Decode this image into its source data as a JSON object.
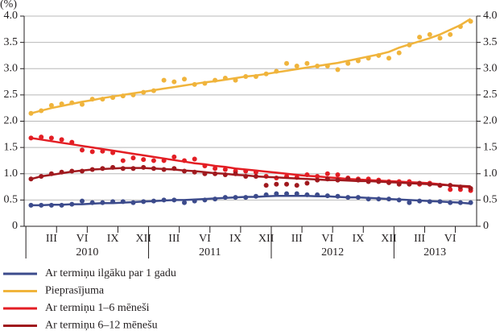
{
  "chart_data": {
    "type": "line",
    "unit": "(%)",
    "categories": [
      null,
      null,
      "III",
      null,
      null,
      "VI",
      null,
      null,
      "IX",
      null,
      null,
      "XII",
      null,
      null,
      "III",
      null,
      null,
      "VI",
      null,
      null,
      "IX",
      null,
      null,
      "XII",
      null,
      null,
      "III",
      null,
      null,
      "VI",
      null,
      null,
      "IX",
      null,
      null,
      "XII",
      null,
      null,
      "III",
      null,
      null,
      "VI",
      null,
      null
    ],
    "years": [
      "2010",
      "2011",
      "2012",
      "2013"
    ],
    "ylim": [
      0,
      4
    ],
    "yticks": [
      0,
      0.5,
      {
        "value": 1,
        "label": "1.0"
      },
      1.5,
      {
        "value": 2,
        "label": "2.0"
      },
      2.5,
      {
        "value": 3,
        "label": "3.0"
      },
      3.5,
      {
        "value": 4,
        "label": "4.0"
      }
    ],
    "grid": true,
    "series": [
      {
        "name": "Ar termiņu ilgāku par 1 gadu",
        "color": "#3c4b8c",
        "values": [
          0.4,
          0.4,
          0.4,
          0.4,
          0.42,
          0.48,
          0.45,
          0.45,
          0.47,
          0.47,
          0.45,
          0.47,
          0.48,
          0.5,
          0.5,
          0.45,
          0.48,
          0.5,
          0.52,
          0.55,
          0.55,
          0.55,
          0.57,
          0.6,
          0.62,
          0.62,
          0.62,
          0.6,
          0.6,
          0.58,
          0.57,
          0.55,
          0.55,
          0.52,
          0.52,
          0.52,
          0.5,
          0.45,
          0.48,
          0.47,
          0.47,
          0.45,
          0.45,
          0.45
        ],
        "trend": [
          0.4,
          0.4,
          0.41,
          0.41,
          0.42,
          0.42,
          0.43,
          0.44,
          0.44,
          0.45,
          0.46,
          0.47,
          0.48,
          0.49,
          0.5,
          0.5,
          0.51,
          0.52,
          0.53,
          0.54,
          0.55,
          0.56,
          0.56,
          0.57,
          0.58,
          0.58,
          0.58,
          0.58,
          0.57,
          0.57,
          0.56,
          0.55,
          0.55,
          0.54,
          0.53,
          0.52,
          0.51,
          0.5,
          0.49,
          0.48,
          0.47,
          0.46,
          0.45,
          0.43
        ]
      },
      {
        "name": "Pieprasījuma",
        "color": "#f0b43c",
        "values": [
          2.15,
          2.2,
          2.3,
          2.33,
          2.35,
          2.32,
          2.42,
          2.42,
          2.45,
          2.48,
          2.5,
          2.55,
          2.58,
          2.78,
          2.75,
          2.8,
          2.7,
          2.72,
          2.78,
          2.82,
          2.78,
          2.85,
          2.85,
          2.9,
          2.95,
          3.1,
          3.05,
          3.1,
          3.05,
          3.05,
          2.98,
          3.1,
          3.15,
          3.2,
          3.25,
          3.2,
          3.3,
          3.45,
          3.6,
          3.65,
          3.58,
          3.65,
          3.8,
          3.9
        ],
        "trend": [
          2.15,
          2.2,
          2.25,
          2.29,
          2.33,
          2.37,
          2.4,
          2.44,
          2.47,
          2.5,
          2.53,
          2.56,
          2.59,
          2.62,
          2.65,
          2.68,
          2.71,
          2.74,
          2.76,
          2.79,
          2.82,
          2.85,
          2.87,
          2.9,
          2.93,
          2.96,
          2.99,
          3.02,
          3.05,
          3.08,
          3.11,
          3.15,
          3.19,
          3.23,
          3.27,
          3.32,
          3.4,
          3.46,
          3.52,
          3.58,
          3.65,
          3.74,
          3.83,
          3.95
        ]
      },
      {
        "name": "Ar termiņu 1–6 mēneši",
        "color": "#e31e24",
        "values": [
          1.68,
          1.7,
          1.68,
          1.65,
          1.6,
          1.45,
          1.42,
          1.43,
          1.4,
          1.25,
          1.3,
          1.27,
          1.25,
          1.25,
          1.32,
          1.25,
          1.28,
          1.15,
          1.1,
          1.08,
          1.05,
          1.05,
          1.03,
          0.95,
          0.92,
          0.95,
          0.93,
          0.98,
          0.95,
          1.0,
          0.98,
          0.92,
          0.9,
          0.9,
          0.88,
          0.85,
          0.85,
          0.85,
          0.8,
          0.82,
          0.78,
          0.7,
          0.7,
          0.68
        ],
        "trend": [
          1.68,
          1.65,
          1.62,
          1.59,
          1.56,
          1.53,
          1.5,
          1.47,
          1.44,
          1.41,
          1.38,
          1.35,
          1.32,
          1.29,
          1.26,
          1.23,
          1.2,
          1.18,
          1.15,
          1.13,
          1.1,
          1.08,
          1.06,
          1.04,
          1.02,
          1.0,
          0.98,
          0.96,
          0.95,
          0.93,
          0.92,
          0.9,
          0.89,
          0.88,
          0.87,
          0.86,
          0.85,
          0.84,
          0.83,
          0.82,
          0.8,
          0.78,
          0.76,
          0.74
        ]
      },
      {
        "name": "Ar termiņu 6–12 mēnešu",
        "color": "#a0191e",
        "values": [
          0.9,
          0.95,
          1.0,
          1.03,
          1.05,
          1.05,
          1.08,
          1.1,
          1.12,
          1.1,
          1.1,
          1.12,
          1.1,
          1.08,
          1.1,
          1.05,
          1.03,
          1.0,
          1.0,
          0.98,
          1.0,
          0.95,
          0.95,
          0.78,
          0.8,
          0.8,
          0.78,
          0.82,
          0.88,
          0.9,
          0.88,
          0.9,
          0.88,
          0.85,
          0.85,
          0.83,
          0.8,
          0.8,
          0.82,
          0.8,
          0.78,
          0.78,
          0.75,
          0.72
        ],
        "trend": [
          0.9,
          0.95,
          0.98,
          1.01,
          1.04,
          1.06,
          1.08,
          1.09,
          1.1,
          1.11,
          1.11,
          1.11,
          1.1,
          1.09,
          1.08,
          1.06,
          1.05,
          1.03,
          1.01,
          1.0,
          0.98,
          0.97,
          0.95,
          0.94,
          0.93,
          0.92,
          0.91,
          0.9,
          0.89,
          0.88,
          0.88,
          0.87,
          0.86,
          0.86,
          0.85,
          0.84,
          0.83,
          0.82,
          0.81,
          0.8,
          0.79,
          0.78,
          0.77,
          0.76
        ]
      }
    ]
  }
}
